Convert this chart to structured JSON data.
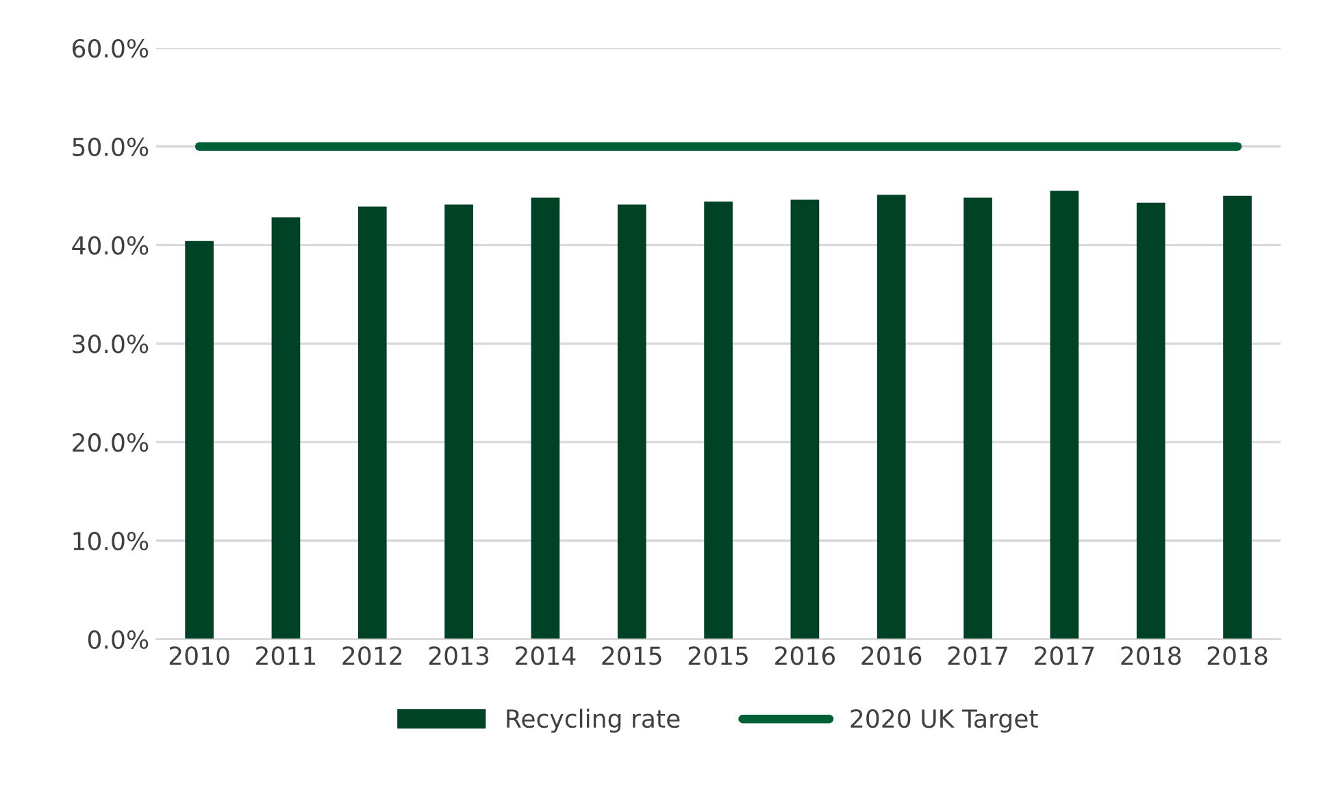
{
  "chart_data": {
    "type": "bar",
    "categories": [
      "2010",
      "2011",
      "2012",
      "2013",
      "2014",
      "2015",
      "2015",
      "2016",
      "2016",
      "2017",
      "2017",
      "2018",
      "2018"
    ],
    "series": [
      {
        "name": "Recycling rate",
        "color": "#004225",
        "values": [
          40.4,
          42.8,
          43.9,
          44.1,
          44.8,
          44.1,
          44.4,
          44.6,
          45.1,
          44.8,
          45.5,
          44.3,
          45.0
        ]
      },
      {
        "name": "2020 UK Target",
        "type": "line",
        "color": "#006035",
        "values": [
          50,
          50,
          50,
          50,
          50,
          50,
          50,
          50,
          50,
          50,
          50,
          50,
          50
        ]
      }
    ],
    "ylim": [
      0,
      60
    ],
    "yticks": [
      {
        "value": 0,
        "label": "0.0%"
      },
      {
        "value": 10,
        "label": "10.0%"
      },
      {
        "value": 20,
        "label": "20.0%"
      },
      {
        "value": 30,
        "label": "30.0%"
      },
      {
        "value": 40,
        "label": "40.0%"
      },
      {
        "value": 50,
        "label": "50.0%"
      },
      {
        "value": 60,
        "label": "60.0%"
      }
    ],
    "grid": "y",
    "legend": "bottom",
    "marker": "none",
    "line_style": "solid"
  }
}
